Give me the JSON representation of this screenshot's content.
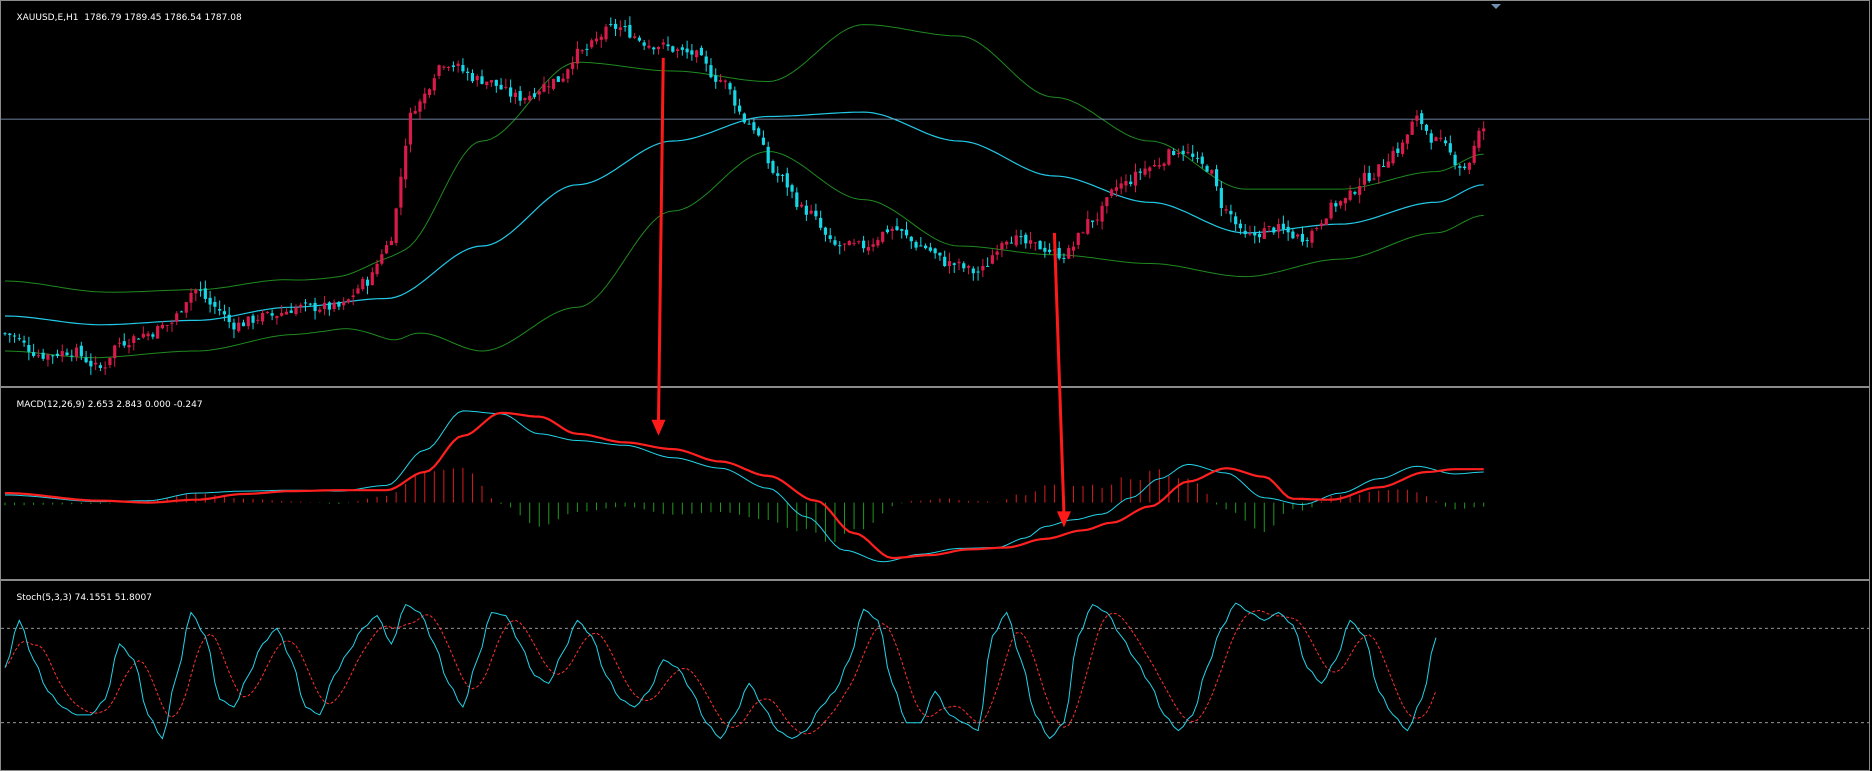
{
  "chart_data": [
    {
      "type": "candlestick",
      "title": "XAUUSD,E,H1",
      "ohlc_text": "1786.79 1789.45 1786.54 1787.08",
      "ylim": [
        1758,
        1802
      ],
      "horizontal_line": 1788.5,
      "colors": {
        "bull": "#d81b4a",
        "bear": "#17d7e6",
        "ma": "#22c8e6",
        "bands": "#1f8a1f",
        "hline": "#8fa8d0"
      },
      "close_keypoints": [
        [
          0,
          1764
        ],
        [
          8,
          1761.5
        ],
        [
          14,
          1762
        ],
        [
          20,
          1760
        ],
        [
          24,
          1763
        ],
        [
          30,
          1764
        ],
        [
          34,
          1765
        ],
        [
          40,
          1769
        ],
        [
          44,
          1767
        ],
        [
          48,
          1765
        ],
        [
          55,
          1766
        ],
        [
          62,
          1767
        ],
        [
          70,
          1767
        ],
        [
          76,
          1770
        ],
        [
          80,
          1774
        ],
        [
          86,
          1790
        ],
        [
          92,
          1795
        ],
        [
          100,
          1793
        ],
        [
          108,
          1791
        ],
        [
          116,
          1793
        ],
        [
          120,
          1796
        ],
        [
          128,
          1799
        ],
        [
          136,
          1797
        ],
        [
          144,
          1796
        ],
        [
          150,
          1793
        ],
        [
          156,
          1788
        ],
        [
          162,
          1782
        ],
        [
          168,
          1778
        ],
        [
          174,
          1774
        ],
        [
          180,
          1774
        ],
        [
          186,
          1776
        ],
        [
          192,
          1774
        ],
        [
          198,
          1772
        ],
        [
          204,
          1771
        ],
        [
          210,
          1775
        ],
        [
          216,
          1774
        ],
        [
          222,
          1773
        ],
        [
          228,
          1777
        ],
        [
          234,
          1781
        ],
        [
          240,
          1783
        ],
        [
          246,
          1785
        ],
        [
          252,
          1783
        ],
        [
          256,
          1778
        ],
        [
          260,
          1775
        ],
        [
          266,
          1776
        ],
        [
          272,
          1775
        ],
        [
          280,
          1779
        ],
        [
          286,
          1782
        ],
        [
          292,
          1785
        ],
        [
          296,
          1788.5
        ],
        [
          300,
          1786
        ],
        [
          306,
          1783
        ],
        [
          310,
          1787.5
        ]
      ],
      "ma_keypoints": [
        [
          0,
          1766
        ],
        [
          20,
          1765
        ],
        [
          40,
          1765.5
        ],
        [
          60,
          1767
        ],
        [
          80,
          1768
        ],
        [
          100,
          1774
        ],
        [
          120,
          1781
        ],
        [
          140,
          1786
        ],
        [
          160,
          1788.8
        ],
        [
          180,
          1789.3
        ],
        [
          200,
          1786
        ],
        [
          220,
          1782
        ],
        [
          240,
          1779
        ],
        [
          260,
          1775.5
        ],
        [
          280,
          1776.5
        ],
        [
          300,
          1779
        ],
        [
          310,
          1781
        ]
      ],
      "band_width_keypoints": [
        [
          0,
          4
        ],
        [
          40,
          3.5
        ],
        [
          70,
          3
        ],
        [
          84,
          5
        ],
        [
          100,
          12
        ],
        [
          120,
          14
        ],
        [
          140,
          8
        ],
        [
          160,
          4
        ],
        [
          180,
          10
        ],
        [
          200,
          12
        ],
        [
          220,
          9
        ],
        [
          240,
          7
        ],
        [
          260,
          5
        ],
        [
          280,
          4
        ],
        [
          300,
          3.5
        ],
        [
          310,
          3.5
        ]
      ]
    },
    {
      "type": "macd",
      "title": "MACD(12,26,9)",
      "values_text": "2.653 2.843 0.000 -0.247",
      "ylim": [
        -8,
        12
      ],
      "colors": {
        "main": "#22d3e8",
        "signal": "#ff2020",
        "hist_pos": "#d81b1b",
        "hist_neg": "#1e9a1e"
      },
      "main_keypoints": [
        [
          0,
          0.8
        ],
        [
          20,
          0.1
        ],
        [
          30,
          0.2
        ],
        [
          40,
          1.0
        ],
        [
          50,
          1.2
        ],
        [
          60,
          1.3
        ],
        [
          70,
          1.2
        ],
        [
          80,
          1.8
        ],
        [
          88,
          5.5
        ],
        [
          96,
          9.6
        ],
        [
          104,
          9.3
        ],
        [
          112,
          7.2
        ],
        [
          120,
          6.5
        ],
        [
          130,
          6.0
        ],
        [
          140,
          4.7
        ],
        [
          150,
          3.6
        ],
        [
          160,
          1.5
        ],
        [
          168,
          -1.5
        ],
        [
          176,
          -5.0
        ],
        [
          184,
          -6.2
        ],
        [
          192,
          -5.4
        ],
        [
          200,
          -4.8
        ],
        [
          208,
          -4.7
        ],
        [
          214,
          -3.7
        ],
        [
          218,
          -2.5
        ],
        [
          224,
          -1.8
        ],
        [
          230,
          -1.2
        ],
        [
          236,
          0.5
        ],
        [
          242,
          2.5
        ],
        [
          248,
          4.0
        ],
        [
          256,
          3.1
        ],
        [
          264,
          0.5
        ],
        [
          272,
          -0.2
        ],
        [
          280,
          1.0
        ],
        [
          288,
          2.5
        ],
        [
          296,
          3.8
        ],
        [
          304,
          3.0
        ],
        [
          310,
          3.2
        ]
      ],
      "signal_keypoints": [
        [
          0,
          1.0
        ],
        [
          20,
          0.2
        ],
        [
          30,
          0.0
        ],
        [
          40,
          0.3
        ],
        [
          50,
          0.9
        ],
        [
          60,
          1.2
        ],
        [
          70,
          1.3
        ],
        [
          80,
          1.3
        ],
        [
          88,
          3.2
        ],
        [
          96,
          7.0
        ],
        [
          104,
          9.4
        ],
        [
          112,
          9.0
        ],
        [
          120,
          7.2
        ],
        [
          130,
          6.3
        ],
        [
          140,
          5.6
        ],
        [
          150,
          4.3
        ],
        [
          160,
          2.8
        ],
        [
          170,
          0.2
        ],
        [
          178,
          -3.2
        ],
        [
          186,
          -5.8
        ],
        [
          194,
          -5.5
        ],
        [
          202,
          -4.9
        ],
        [
          210,
          -4.7
        ],
        [
          218,
          -3.8
        ],
        [
          226,
          -2.9
        ],
        [
          232,
          -2.1
        ],
        [
          240,
          -0.4
        ],
        [
          248,
          2.2
        ],
        [
          256,
          3.6
        ],
        [
          264,
          2.7
        ],
        [
          270,
          0.4
        ],
        [
          278,
          0.3
        ],
        [
          288,
          1.6
        ],
        [
          298,
          3.2
        ],
        [
          304,
          3.5
        ],
        [
          310,
          3.5
        ]
      ]
    },
    {
      "type": "line",
      "title": "Stoch(5,3,3)",
      "values_text": "74.1551 51.8007",
      "ylim": [
        -10,
        110
      ],
      "levels": [
        80,
        20
      ],
      "colors": {
        "main": "#22d3e8",
        "signal": "#ff3030",
        "level": "#c8c8c8"
      },
      "main_keypoints": [
        [
          0,
          55
        ],
        [
          3,
          85
        ],
        [
          6,
          60
        ],
        [
          9,
          40
        ],
        [
          12,
          30
        ],
        [
          15,
          25
        ],
        [
          18,
          25
        ],
        [
          21,
          35
        ],
        [
          24,
          70
        ],
        [
          27,
          60
        ],
        [
          30,
          25
        ],
        [
          33,
          10
        ],
        [
          36,
          50
        ],
        [
          39,
          90
        ],
        [
          42,
          75
        ],
        [
          45,
          35
        ],
        [
          48,
          30
        ],
        [
          51,
          50
        ],
        [
          54,
          70
        ],
        [
          57,
          80
        ],
        [
          60,
          60
        ],
        [
          63,
          30
        ],
        [
          66,
          25
        ],
        [
          69,
          50
        ],
        [
          72,
          65
        ],
        [
          75,
          80
        ],
        [
          78,
          88
        ],
        [
          81,
          70
        ],
        [
          84,
          95
        ],
        [
          87,
          90
        ],
        [
          90,
          70
        ],
        [
          93,
          45
        ],
        [
          96,
          30
        ],
        [
          99,
          60
        ],
        [
          102,
          90
        ],
        [
          105,
          88
        ],
        [
          108,
          70
        ],
        [
          111,
          50
        ],
        [
          114,
          45
        ],
        [
          117,
          65
        ],
        [
          120,
          85
        ],
        [
          123,
          75
        ],
        [
          126,
          50
        ],
        [
          129,
          35
        ],
        [
          132,
          30
        ],
        [
          135,
          40
        ],
        [
          138,
          60
        ],
        [
          141,
          55
        ],
        [
          144,
          40
        ],
        [
          147,
          20
        ],
        [
          150,
          10
        ],
        [
          153,
          25
        ],
        [
          156,
          45
        ],
        [
          159,
          30
        ],
        [
          162,
          15
        ],
        [
          165,
          10
        ],
        [
          168,
          15
        ],
        [
          171,
          30
        ],
        [
          174,
          40
        ],
        [
          177,
          60
        ],
        [
          180,
          92
        ],
        [
          183,
          85
        ],
        [
          186,
          45
        ],
        [
          189,
          20
        ],
        [
          192,
          20
        ],
        [
          195,
          40
        ],
        [
          198,
          25
        ],
        [
          201,
          20
        ],
        [
          204,
          15
        ],
        [
          207,
          75
        ],
        [
          210,
          90
        ],
        [
          213,
          60
        ],
        [
          216,
          25
        ],
        [
          219,
          10
        ],
        [
          222,
          20
        ],
        [
          225,
          75
        ],
        [
          228,
          95
        ],
        [
          231,
          90
        ],
        [
          234,
          75
        ],
        [
          237,
          60
        ],
        [
          240,
          45
        ],
        [
          243,
          25
        ],
        [
          246,
          15
        ],
        [
          249,
          25
        ],
        [
          252,
          55
        ],
        [
          255,
          80
        ],
        [
          258,
          96
        ],
        [
          261,
          90
        ],
        [
          264,
          85
        ],
        [
          267,
          90
        ],
        [
          270,
          82
        ],
        [
          273,
          55
        ],
        [
          276,
          45
        ],
        [
          279,
          60
        ],
        [
          282,
          85
        ],
        [
          285,
          75
        ],
        [
          288,
          40
        ],
        [
          291,
          25
        ],
        [
          294,
          15
        ],
        [
          297,
          35
        ],
        [
          300,
          74
        ]
      ]
    }
  ],
  "arrows": [
    {
      "label": "bearish-divergence-arrow",
      "from_bar": 138,
      "from_price": 1795.5,
      "to_bar": 137,
      "to_macd": 7.0
    },
    {
      "label": "bullish-divergence-arrow",
      "from_bar": 220,
      "from_price": 1775.5,
      "to_bar": 222,
      "to_macd": -2.6
    }
  ]
}
